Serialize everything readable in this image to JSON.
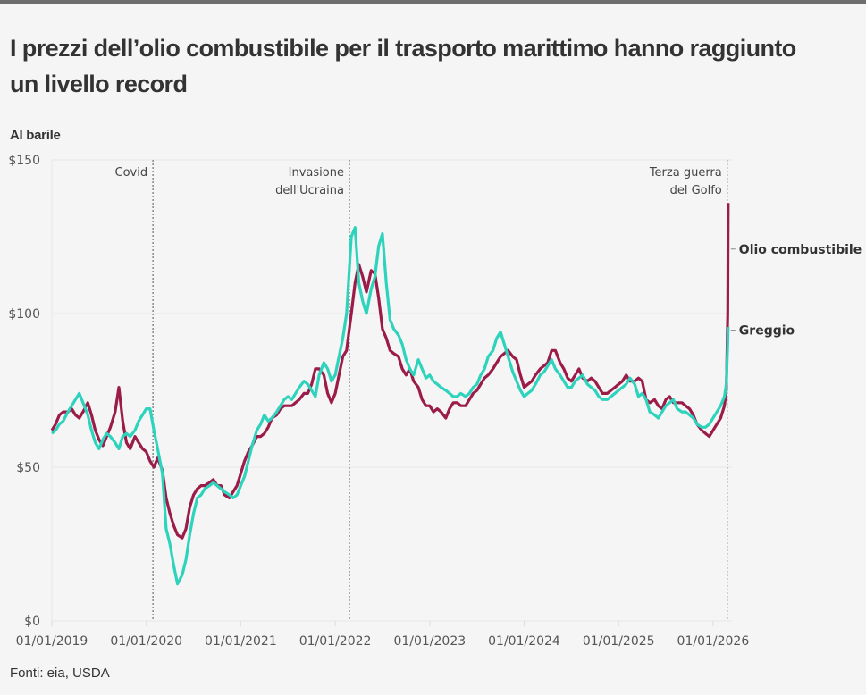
{
  "title": "I prezzi dell’olio combustibile per il trasporto marittimo hanno raggiunto un livello record",
  "unit_label": "Al barile",
  "source": "Fonti: eia, USDA",
  "colors": {
    "fuel": "#9b1c48",
    "crude": "#2ed3bd",
    "background": "#f5f5f5",
    "grid": "#e6e6e6"
  },
  "chart_data": {
    "type": "line",
    "title": "I prezzi dell’olio combustibile per il trasporto marittimo hanno raggiunto un livello record",
    "xlabel": "",
    "ylabel": "Al barile",
    "ylim": [
      0,
      150
    ],
    "xlim": [
      "2019-01-01",
      "2026-03-20"
    ],
    "grid": true,
    "yticks": [
      {
        "value": 0,
        "label": "$0"
      },
      {
        "value": 50,
        "label": "$50"
      },
      {
        "value": 100,
        "label": "$100"
      },
      {
        "value": 150,
        "label": "$150"
      }
    ],
    "xticks": [
      {
        "value": 2019,
        "label": "01/01/2019"
      },
      {
        "value": 2020,
        "label": "01/01/2020"
      },
      {
        "value": 2021,
        "label": "01/01/2021"
      },
      {
        "value": 2022,
        "label": "01/01/2022"
      },
      {
        "value": 2023,
        "label": "01/01/2023"
      },
      {
        "value": 2024,
        "label": "01/01/2024"
      },
      {
        "value": 2025,
        "label": "01/01/2025"
      },
      {
        "value": 2026,
        "label": "01/01/2026"
      }
    ],
    "annotations": [
      {
        "x": 2020.07,
        "lines": [
          "Covid"
        ]
      },
      {
        "x": 2022.15,
        "lines": [
          "Invasione",
          "dell'Ucraina"
        ]
      },
      {
        "x": 2026.15,
        "lines": [
          "Terza guerra",
          "del Golfo"
        ]
      }
    ],
    "x": [
      2019.0,
      2019.04,
      2019.08,
      2019.12,
      2019.17,
      2019.21,
      2019.25,
      2019.29,
      2019.33,
      2019.38,
      2019.42,
      2019.46,
      2019.5,
      2019.54,
      2019.58,
      2019.62,
      2019.67,
      2019.71,
      2019.75,
      2019.79,
      2019.83,
      2019.88,
      2019.92,
      2019.96,
      2020.0,
      2020.04,
      2020.08,
      2020.12,
      2020.17,
      2020.21,
      2020.25,
      2020.29,
      2020.33,
      2020.38,
      2020.42,
      2020.46,
      2020.5,
      2020.54,
      2020.58,
      2020.62,
      2020.67,
      2020.71,
      2020.75,
      2020.79,
      2020.83,
      2020.88,
      2020.92,
      2020.96,
      2021.0,
      2021.04,
      2021.08,
      2021.12,
      2021.17,
      2021.21,
      2021.25,
      2021.29,
      2021.33,
      2021.38,
      2021.42,
      2021.46,
      2021.5,
      2021.54,
      2021.58,
      2021.62,
      2021.67,
      2021.71,
      2021.75,
      2021.79,
      2021.83,
      2021.88,
      2021.92,
      2021.96,
      2022.0,
      2022.04,
      2022.08,
      2022.12,
      2022.17,
      2022.21,
      2022.25,
      2022.29,
      2022.33,
      2022.38,
      2022.42,
      2022.46,
      2022.5,
      2022.54,
      2022.58,
      2022.62,
      2022.67,
      2022.71,
      2022.75,
      2022.79,
      2022.83,
      2022.88,
      2022.92,
      2022.96,
      2023.0,
      2023.04,
      2023.08,
      2023.12,
      2023.17,
      2023.21,
      2023.25,
      2023.29,
      2023.33,
      2023.38,
      2023.42,
      2023.46,
      2023.5,
      2023.54,
      2023.58,
      2023.62,
      2023.67,
      2023.71,
      2023.75,
      2023.79,
      2023.83,
      2023.88,
      2023.92,
      2023.96,
      2024.0,
      2024.04,
      2024.08,
      2024.12,
      2024.17,
      2024.21,
      2024.25,
      2024.29,
      2024.33,
      2024.38,
      2024.42,
      2024.46,
      2024.5,
      2024.54,
      2024.58,
      2024.62,
      2024.67,
      2024.71,
      2024.75,
      2024.79,
      2024.83,
      2024.88,
      2024.92,
      2024.96,
      2025.0,
      2025.04,
      2025.08,
      2025.12,
      2025.17,
      2025.21,
      2025.25,
      2025.29,
      2025.33,
      2025.38,
      2025.42,
      2025.46,
      2025.5,
      2025.54,
      2025.58,
      2025.62,
      2025.67,
      2025.71,
      2025.75,
      2025.79,
      2025.83,
      2025.88,
      2025.92,
      2025.96,
      2026.0,
      2026.04,
      2026.08,
      2026.12,
      2026.14,
      2026.155,
      2026.16
    ],
    "series": [
      {
        "name": "Olio combustibile",
        "label": "Olio combustibile",
        "color": "#9b1c48",
        "values": [
          62,
          64,
          67,
          68,
          68,
          69,
          67,
          66,
          68,
          71,
          67,
          62,
          59,
          57,
          60,
          63,
          68,
          76,
          65,
          58,
          56,
          60,
          58,
          56,
          55,
          52,
          50,
          53,
          49,
          40,
          35,
          31,
          28,
          27,
          30,
          37,
          41,
          43,
          44,
          44,
          45,
          46,
          44,
          44,
          41,
          40,
          42,
          44,
          48,
          52,
          55,
          57,
          60,
          60,
          61,
          63,
          66,
          67,
          69,
          70,
          70,
          70,
          71,
          72,
          74,
          74,
          77,
          82,
          82,
          80,
          74,
          71,
          74,
          80,
          86,
          88,
          100,
          110,
          116,
          112,
          107,
          114,
          113,
          105,
          95,
          92,
          88,
          87,
          86,
          82,
          80,
          82,
          78,
          76,
          72,
          70,
          70,
          68,
          69,
          68,
          66,
          69,
          71,
          71,
          70,
          70,
          72,
          74,
          75,
          77,
          79,
          80,
          82,
          84,
          86,
          87,
          88,
          86,
          85,
          80,
          76,
          77,
          78,
          80,
          82,
          83,
          84,
          88,
          88,
          84,
          82,
          79,
          78,
          80,
          82,
          79,
          78,
          79,
          78,
          76,
          74,
          74,
          75,
          76,
          77,
          78,
          80,
          78,
          78,
          79,
          78,
          72,
          71,
          72,
          70,
          69,
          72,
          73,
          71,
          71,
          71,
          70,
          69,
          67,
          64,
          62,
          61,
          60,
          62,
          64,
          66,
          70,
          75,
          100,
          136
        ]
      },
      {
        "name": "Greggio",
        "label": "Greggio",
        "color": "#2ed3bd",
        "values": [
          61,
          62,
          64,
          65,
          68,
          70,
          72,
          74,
          71,
          67,
          62,
          58,
          56,
          59,
          61,
          60,
          58,
          56,
          60,
          61,
          60,
          62,
          65,
          67,
          69,
          69,
          62,
          56,
          48,
          30,
          25,
          18,
          12,
          15,
          20,
          28,
          35,
          40,
          41,
          43,
          44,
          45,
          44,
          43,
          42,
          41,
          40,
          41,
          44,
          47,
          52,
          57,
          62,
          64,
          67,
          65,
          66,
          68,
          70,
          72,
          73,
          72,
          74,
          76,
          78,
          77,
          75,
          73,
          80,
          84,
          82,
          78,
          80,
          86,
          92,
          100,
          125,
          128,
          110,
          104,
          100,
          108,
          112,
          122,
          126,
          110,
          98,
          95,
          93,
          90,
          85,
          82,
          80,
          85,
          82,
          79,
          80,
          78,
          77,
          76,
          75,
          74,
          73,
          73,
          74,
          73,
          74,
          76,
          77,
          80,
          82,
          86,
          88,
          92,
          94,
          90,
          86,
          81,
          78,
          75,
          73,
          74,
          75,
          77,
          80,
          81,
          83,
          85,
          82,
          80,
          78,
          76,
          76,
          78,
          79,
          80,
          77,
          76,
          75,
          73,
          72,
          72,
          73,
          74,
          75,
          76,
          77,
          79,
          77,
          73,
          74,
          72,
          68,
          67,
          66,
          68,
          70,
          71,
          72,
          69,
          68,
          68,
          67,
          66,
          64,
          63,
          63,
          64,
          66,
          68,
          70,
          73,
          77,
          90,
          95.6
        ]
      }
    ]
  }
}
